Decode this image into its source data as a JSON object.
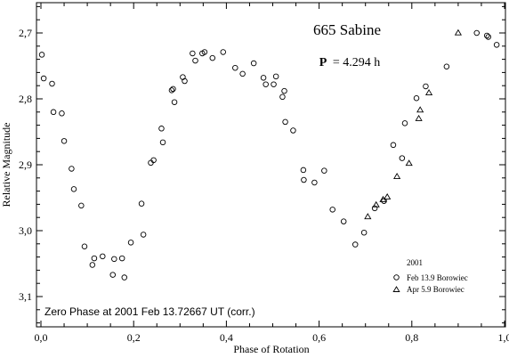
{
  "chart_data": {
    "type": "scatter",
    "title": "665 Sabine",
    "period_label": "P",
    "period_value": "= 4.294 h",
    "xlabel": "Phase of Rotation",
    "ylabel": "Relative Magnitude",
    "xlim": [
      0.0,
      1.0
    ],
    "ylim": [
      2.645,
      3.15
    ],
    "y_inverted": true,
    "x_ticks": [
      "0,0",
      "0,2",
      "0,4",
      "0,6",
      "0,8",
      "1,0"
    ],
    "x_tick_values": [
      0.0,
      0.2,
      0.4,
      0.6,
      0.8,
      1.0
    ],
    "y_ticks": [
      "2,7",
      "2,8",
      "2,9",
      "3,0",
      "3,1"
    ],
    "y_tick_values": [
      2.7,
      2.8,
      2.9,
      3.0,
      3.1
    ],
    "legend_title": "2001",
    "legend_placement": "bottom-right",
    "annotation": "Zero Phase at 2001 Feb 13.72667 UT (corr.)",
    "colors": {
      "marker": "#000000",
      "axes": "#000000",
      "background": "#ffffff"
    },
    "series": [
      {
        "name": "Feb 13.9 Borowiec",
        "marker": "circle",
        "points": [
          [
            0.002,
            2.733
          ],
          [
            0.006,
            2.769
          ],
          [
            0.024,
            2.777
          ],
          [
            0.027,
            2.82
          ],
          [
            0.045,
            2.822
          ],
          [
            0.05,
            2.864
          ],
          [
            0.066,
            2.906
          ],
          [
            0.071,
            2.937
          ],
          [
            0.087,
            2.962
          ],
          [
            0.094,
            3.024
          ],
          [
            0.111,
            3.052
          ],
          [
            0.115,
            3.042
          ],
          [
            0.133,
            3.039
          ],
          [
            0.155,
            3.067
          ],
          [
            0.158,
            3.043
          ],
          [
            0.175,
            3.042
          ],
          [
            0.18,
            3.071
          ],
          [
            0.194,
            3.018
          ],
          [
            0.217,
            2.959
          ],
          [
            0.221,
            3.006
          ],
          [
            0.237,
            2.897
          ],
          [
            0.243,
            2.893
          ],
          [
            0.26,
            2.845
          ],
          [
            0.263,
            2.866
          ],
          [
            0.282,
            2.787
          ],
          [
            0.285,
            2.785
          ],
          [
            0.288,
            2.805
          ],
          [
            0.306,
            2.767
          ],
          [
            0.31,
            2.773
          ],
          [
            0.327,
            2.731
          ],
          [
            0.333,
            2.742
          ],
          [
            0.348,
            2.731
          ],
          [
            0.353,
            2.729
          ],
          [
            0.37,
            2.738
          ],
          [
            0.393,
            2.729
          ],
          [
            0.419,
            2.753
          ],
          [
            0.435,
            2.762
          ],
          [
            0.459,
            2.746
          ],
          [
            0.48,
            2.768
          ],
          [
            0.485,
            2.778
          ],
          [
            0.502,
            2.778
          ],
          [
            0.507,
            2.766
          ],
          [
            0.521,
            2.797
          ],
          [
            0.525,
            2.788
          ],
          [
            0.527,
            2.835
          ],
          [
            0.544,
            2.848
          ],
          [
            0.566,
            2.908
          ],
          [
            0.567,
            2.923
          ],
          [
            0.59,
            2.927
          ],
          [
            0.611,
            2.909
          ],
          [
            0.629,
            2.968
          ],
          [
            0.653,
            2.986
          ],
          [
            0.678,
            3.021
          ],
          [
            0.697,
            3.003
          ],
          [
            0.779,
            2.89
          ],
          [
            0.72,
            2.966
          ],
          [
            0.74,
            2.955
          ],
          [
            0.76,
            2.87
          ],
          [
            0.785,
            2.837
          ],
          [
            0.81,
            2.799
          ],
          [
            0.83,
            2.781
          ],
          [
            0.875,
            2.751
          ],
          [
            0.94,
            2.7
          ],
          [
            0.962,
            2.704
          ],
          [
            0.965,
            2.706
          ],
          [
            0.983,
            2.718
          ]
        ]
      },
      {
        "name": "Apr 5.9 Borowiec",
        "marker": "triangle",
        "points": [
          [
            0.705,
            2.979
          ],
          [
            0.723,
            2.961
          ],
          [
            0.738,
            2.953
          ],
          [
            0.747,
            2.949
          ],
          [
            0.768,
            2.918
          ],
          [
            0.794,
            2.898
          ],
          [
            0.815,
            2.83
          ],
          [
            0.818,
            2.817
          ],
          [
            0.837,
            2.791
          ],
          [
            0.9,
            2.7
          ]
        ]
      }
    ]
  }
}
